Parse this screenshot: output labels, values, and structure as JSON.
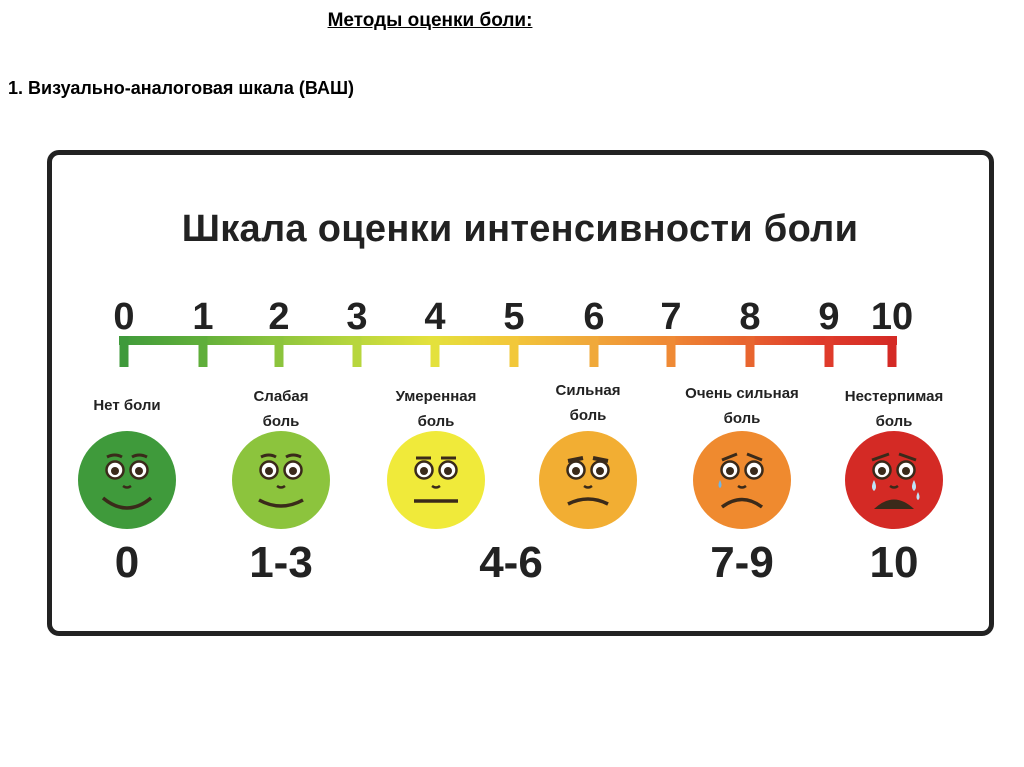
{
  "slide": {
    "title": "Методы оценки боли:",
    "subtitle": "1. Визуально-аналоговая шкала (ВАШ)"
  },
  "scale": {
    "title": "Шкала оценки интенсивности боли",
    "ticks": [
      "0",
      "1",
      "2",
      "3",
      "4",
      "5",
      "6",
      "7",
      "8",
      "9",
      "10"
    ],
    "tick_colors": [
      "#3f9a3b",
      "#5fae3a",
      "#8cc43d",
      "#b7d63d",
      "#e4e13c",
      "#f2c83a",
      "#f0a93a",
      "#ef8a35",
      "#e8652f",
      "#df3b2b",
      "#d42a25"
    ],
    "categories": [
      {
        "label_lines": [
          "Нет боли"
        ],
        "range": "0",
        "color": "#3f9a3b",
        "mood": "happy"
      },
      {
        "label_lines": [
          "Слабая",
          "боль"
        ],
        "range": "1-3",
        "color": "#8cc43d",
        "mood": "smile"
      },
      {
        "label_lines": [
          "Умеренная",
          "боль"
        ],
        "range": "4-6",
        "color": "#f0ea3a",
        "mood": "neutral"
      },
      {
        "label_lines": [
          "Сильная",
          "боль"
        ],
        "range": "",
        "color": "#f2ae33",
        "mood": "frown"
      },
      {
        "label_lines": [
          "Очень сильная",
          "боль"
        ],
        "range": "7-9",
        "color": "#ef8a2f",
        "mood": "sad"
      },
      {
        "label_lines": [
          "Нестерпимая",
          "боль"
        ],
        "range": "10",
        "color": "#d42a25",
        "mood": "crying"
      }
    ]
  }
}
